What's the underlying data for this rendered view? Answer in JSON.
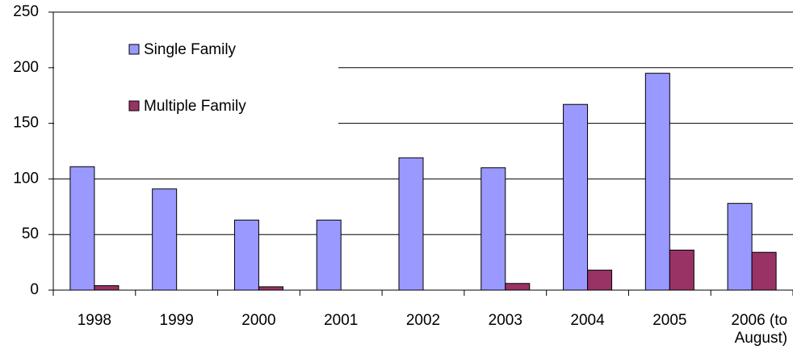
{
  "chart_data": {
    "type": "bar",
    "categories": [
      "1998",
      "1999",
      "2000",
      "2001",
      "2002",
      "2003",
      "2004",
      "2005",
      "2006 (to August)"
    ],
    "series": [
      {
        "name": "Single Family",
        "color": "#9999ff",
        "values": [
          111,
          91,
          63,
          63,
          119,
          110,
          167,
          195,
          78
        ]
      },
      {
        "name": "Multiple Family",
        "color": "#993366",
        "values": [
          4,
          0,
          3,
          0,
          0,
          6,
          18,
          36,
          34
        ]
      }
    ],
    "ylim": [
      0,
      250
    ],
    "yticks": [
      0,
      50,
      100,
      150,
      200,
      250
    ],
    "grid": true,
    "legend": "upper-left"
  }
}
